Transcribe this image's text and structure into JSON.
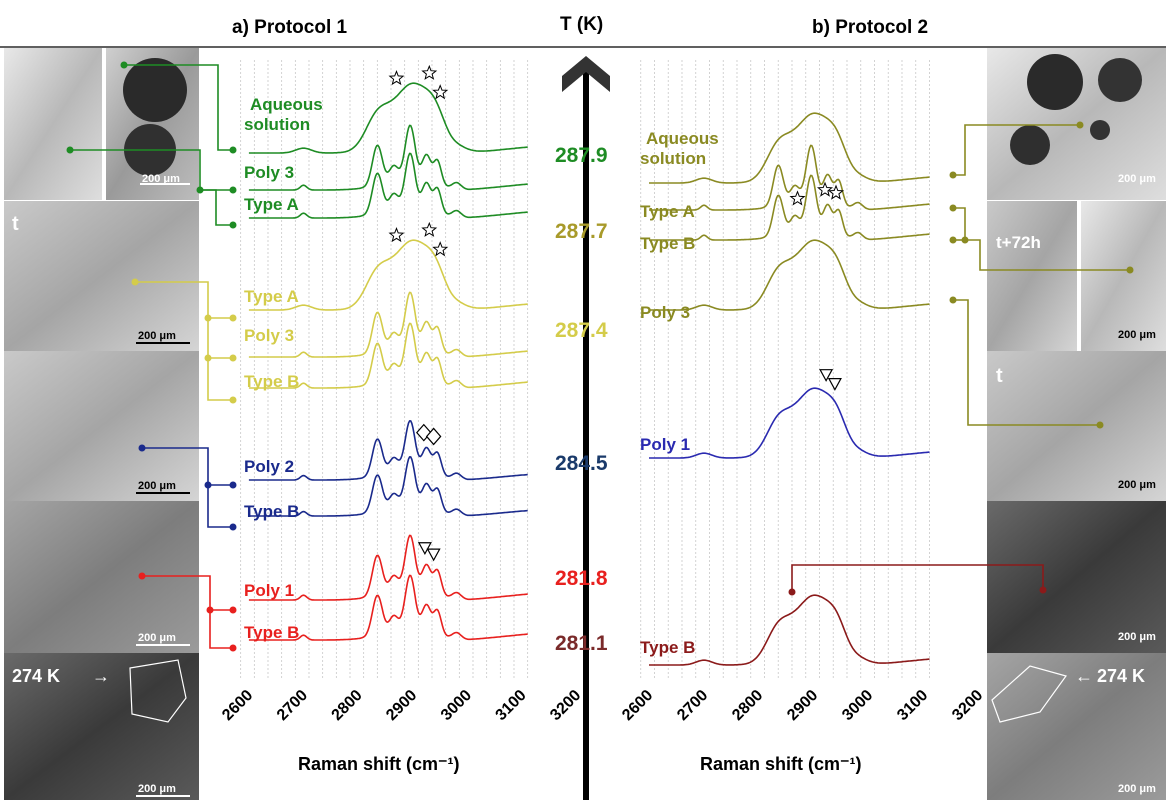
{
  "panels": {
    "a_title": "a) Protocol 1",
    "b_title": "b) Protocol 2",
    "t_axis_label": "T (K)"
  },
  "colors": {
    "green": "#1e8c24",
    "olive_light": "#d4cc4a",
    "navy": "#1a2a8c",
    "red": "#e8201e",
    "olive_dark": "#8a8a22",
    "blue": "#2a2ab0",
    "maroon": "#8b1a1a",
    "temp_navy": "#1a3a6a",
    "temp_maroon": "#7a2a2a"
  },
  "temperatures": [
    {
      "value": "287.9",
      "color": "#1e8c24"
    },
    {
      "value": "287.7",
      "color": "#a89a2a"
    },
    {
      "value": "287.4",
      "color": "#d4cc4a"
    },
    {
      "value": "284.5",
      "color": "#1a3a6a"
    },
    {
      "value": "281.8",
      "color": "#e8201e"
    },
    {
      "value": "281.1",
      "color": "#7a2a2a"
    }
  ],
  "micrographs": {
    "scale_label": "200 μm",
    "time_t": "t",
    "time_t72": "t+72h",
    "temp_274": "274 K"
  },
  "chart_data": [
    {
      "type": "line",
      "title": "a) Protocol 1",
      "xlabel": "Raman shift (cm⁻¹)",
      "ylabel": "",
      "xlim": [
        2600,
        3200
      ],
      "xticks": [
        "2600",
        "2700",
        "2800",
        "2900",
        "3000",
        "3100",
        "3200"
      ],
      "x_range_plotted": [
        2640,
        3150
      ],
      "grid": "vertical dotted",
      "series": [
        {
          "name": "Aqueous solution",
          "group": "287.9",
          "color": "#1e8c24",
          "markers": "stars at 2910, 2970, 2990",
          "label_line1": "Aqueous",
          "label_line2": "solution"
        },
        {
          "name": "Poly 3",
          "group": "287.9",
          "color": "#1e8c24"
        },
        {
          "name": "Type A",
          "group": "287.9",
          "color": "#1e8c24"
        },
        {
          "name": "Type A",
          "group": "287.4",
          "color": "#d4cc4a",
          "markers": "stars at 2910, 2970, 2990"
        },
        {
          "name": "Poly 3",
          "group": "287.4",
          "color": "#d4cc4a"
        },
        {
          "name": "Type B",
          "group": "287.4",
          "color": "#d4cc4a"
        },
        {
          "name": "Poly 2",
          "group": "284.5",
          "color": "#1a2a8c",
          "markers": "diamonds at 2960, 2978"
        },
        {
          "name": "Type B",
          "group": "284.5",
          "color": "#1a2a8c"
        },
        {
          "name": "Poly 1",
          "group": "281.8",
          "color": "#e8201e",
          "markers": "triangles at 2962, 2978"
        },
        {
          "name": "Type B",
          "group": "281.8",
          "color": "#e8201e"
        }
      ]
    },
    {
      "type": "line",
      "title": "b) Protocol 2",
      "xlabel": "Raman shift (cm⁻¹)",
      "ylabel": "",
      "xlim": [
        2600,
        3200
      ],
      "xticks": [
        "2600",
        "2700",
        "2800",
        "2900",
        "3000",
        "3100",
        "3200"
      ],
      "x_range_plotted": [
        2640,
        3150
      ],
      "grid": "vertical dotted",
      "series": [
        {
          "name": "Aqueous solution",
          "group": "287.7",
          "color": "#8a8a22",
          "label_line1": "Aqueous",
          "label_line2": "solution"
        },
        {
          "name": "Type A",
          "group": "287.7",
          "color": "#8a8a22"
        },
        {
          "name": "Type B",
          "group": "287.7",
          "color": "#8a8a22",
          "markers": "stars at 2910, 2960, 2980"
        },
        {
          "name": "Poly 3",
          "group": "287.7",
          "color": "#8a8a22"
        },
        {
          "name": "Poly 1",
          "group": "284.5",
          "color": "#2a2ab0",
          "markers": "triangles at 2962, 2978"
        },
        {
          "name": "Type B",
          "group": "281.1",
          "color": "#8b1a1a"
        }
      ]
    }
  ]
}
